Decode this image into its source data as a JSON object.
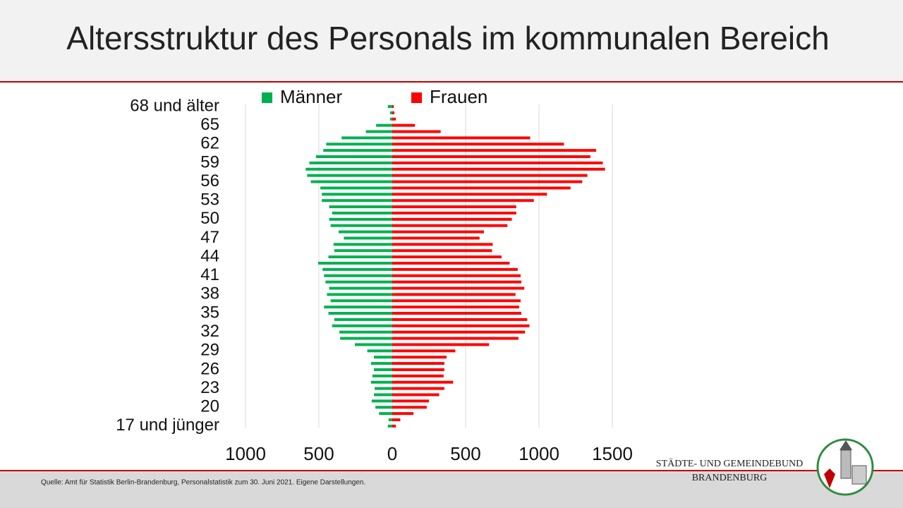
{
  "chart_data": {
    "type": "pyramid",
    "title": "Altersstruktur des Personals im kommunalen Bereich",
    "categories": [
      "68 und älter",
      null,
      null,
      "65",
      null,
      null,
      "62",
      null,
      null,
      "59",
      null,
      null,
      "56",
      null,
      null,
      "53",
      null,
      null,
      "50",
      null,
      null,
      "47",
      null,
      null,
      "44",
      null,
      null,
      "41",
      null,
      null,
      "38",
      null,
      null,
      "35",
      null,
      null,
      "32",
      null,
      null,
      "29",
      null,
      null,
      "26",
      null,
      null,
      "23",
      null,
      null,
      "20",
      null,
      null,
      "17 und jünger"
    ],
    "series": [
      {
        "name": "Männer",
        "color": "#00b050",
        "values": [
          -30,
          -15,
          -15,
          -110,
          -180,
          -345,
          -450,
          -470,
          -520,
          -565,
          -590,
          -580,
          -555,
          -490,
          -480,
          -480,
          -430,
          -410,
          -430,
          -420,
          -365,
          -330,
          -400,
          -395,
          -435,
          -505,
          -475,
          -465,
          -455,
          -430,
          -445,
          -420,
          -465,
          -435,
          -395,
          -410,
          -360,
          -355,
          -255,
          -170,
          -125,
          -145,
          -125,
          -135,
          -145,
          -120,
          -125,
          -140,
          -115,
          -90,
          -25,
          -30
        ]
      },
      {
        "name": "Frauen",
        "color": "#ff0000",
        "values": [
          10,
          15,
          25,
          155,
          330,
          940,
          1170,
          1390,
          1350,
          1435,
          1450,
          1330,
          1295,
          1215,
          1055,
          965,
          845,
          845,
          815,
          785,
          625,
          595,
          685,
          680,
          745,
          800,
          855,
          875,
          880,
          900,
          840,
          875,
          865,
          880,
          920,
          935,
          905,
          860,
          660,
          430,
          370,
          355,
          355,
          350,
          415,
          355,
          320,
          250,
          235,
          145,
          55,
          25
        ]
      }
    ],
    "xlim": [
      -1000,
      1500
    ],
    "xticks": [
      {
        "value": -1000,
        "label": "1000"
      },
      {
        "value": -500,
        "label": "500"
      },
      0,
      500,
      1000,
      1500
    ],
    "grid": true
  },
  "footer": {
    "source": "Quelle: Amt für Statistik Berlin-Brandenburg, Personalstatistik zum 30. Juni 2021. Eigene Darstellungen.",
    "org_line1": "STÄDTE-  UND GEMEINDEBUND",
    "org_line2": "BRANDENBURG"
  }
}
